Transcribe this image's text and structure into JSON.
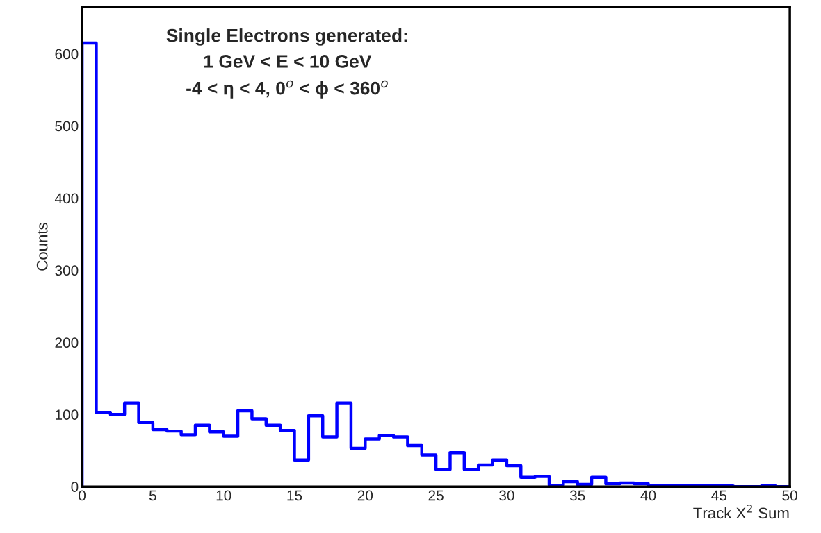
{
  "chart_data": {
    "type": "histogram",
    "xlabel": "Track Χ$^{2}$ Sum",
    "ylabel": "Counts",
    "bins": [
      0,
      1,
      2,
      3,
      4,
      5,
      6,
      7,
      8,
      9,
      10,
      11,
      12,
      13,
      14,
      15,
      16,
      17,
      18,
      19,
      20,
      21,
      22,
      23,
      24,
      25,
      26,
      27,
      28,
      29,
      30,
      31,
      32,
      33,
      34,
      35,
      36,
      37,
      38,
      39,
      40,
      41,
      42,
      43,
      44,
      45,
      46,
      47,
      48,
      49,
      50
    ],
    "values": [
      615,
      103,
      100,
      116,
      89,
      79,
      77,
      72,
      85,
      76,
      70,
      105,
      94,
      85,
      78,
      37,
      98,
      69,
      116,
      53,
      66,
      71,
      69,
      57,
      44,
      24,
      47,
      24,
      30,
      37,
      29,
      13,
      14,
      2,
      7,
      3,
      13,
      4,
      5,
      4,
      2,
      1,
      1,
      1,
      1,
      1,
      0,
      0,
      1,
      0
    ],
    "color": "#0000ff",
    "xlim": [
      0,
      50
    ],
    "ylim": [
      0,
      665
    ],
    "xticks": [
      0,
      5,
      10,
      15,
      20,
      25,
      30,
      35,
      40,
      45,
      50
    ],
    "yticks": [
      0,
      100,
      200,
      300,
      400,
      500,
      600
    ],
    "grid": false,
    "annotations": [
      "Single Electrons generated:",
      "1 GeV < E < 10 GeV",
      "-4 < η < 4, 0$^{o}$ < ϕ < 360$^{o}$"
    ]
  }
}
